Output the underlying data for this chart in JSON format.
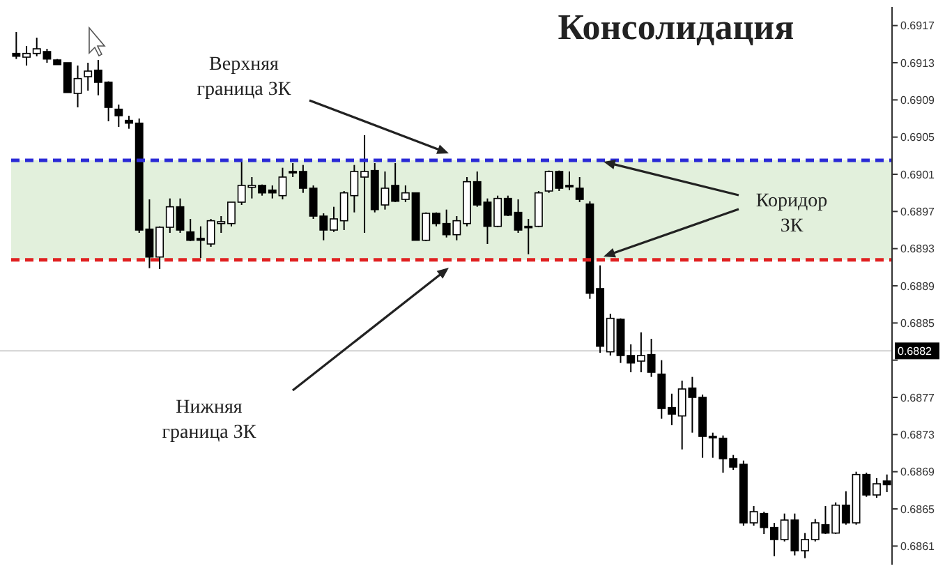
{
  "chart_data": {
    "type": "candlestick",
    "title": "Консолидация",
    "categories": [
      null,
      null,
      null,
      null,
      null,
      null,
      null,
      null,
      null,
      null,
      null,
      null,
      null,
      null,
      null,
      null,
      null,
      null,
      null,
      null,
      null,
      null,
      null,
      null,
      null,
      null,
      null,
      null,
      null,
      null,
      null,
      null,
      null,
      null,
      null,
      null,
      null,
      null,
      null,
      null,
      null,
      null,
      null,
      null,
      null,
      null,
      null,
      null,
      null,
      null,
      null,
      null,
      null,
      null,
      null,
      null,
      null,
      null,
      null,
      null,
      null,
      null,
      null,
      null,
      null,
      null,
      null,
      null,
      null,
      null,
      null,
      null,
      null,
      null,
      null,
      null,
      null,
      null,
      null,
      null,
      null,
      null,
      null,
      null,
      null,
      null
    ],
    "ohlc": [
      [
        0.6914,
        0.69163,
        0.69134,
        0.69137
      ],
      [
        0.69136,
        0.69148,
        0.69127,
        0.6914
      ],
      [
        0.6914,
        0.69157,
        0.69137,
        0.69145
      ],
      [
        0.69142,
        0.69145,
        0.6913,
        0.69134
      ],
      [
        0.69133,
        0.69134,
        0.69128,
        0.69128
      ],
      [
        0.6913,
        0.6913,
        0.69098,
        0.69098
      ],
      [
        0.69097,
        0.69127,
        0.69082,
        0.69113
      ],
      [
        0.69115,
        0.6913,
        0.691,
        0.69121
      ],
      [
        0.69122,
        0.69133,
        0.69095,
        0.69109
      ],
      [
        0.69109,
        0.6911,
        0.69067,
        0.69082
      ],
      [
        0.6908,
        0.69085,
        0.69061,
        0.69073
      ],
      [
        0.69068,
        0.69073,
        0.69059,
        0.69065
      ],
      [
        0.69065,
        0.6907,
        0.68947,
        0.6895
      ],
      [
        0.68951,
        0.68983,
        0.68909,
        0.68921
      ],
      [
        0.68921,
        0.68954,
        0.68908,
        0.68953
      ],
      [
        0.68953,
        0.68984,
        0.68947,
        0.68975
      ],
      [
        0.68975,
        0.68984,
        0.68947,
        0.6895
      ],
      [
        0.68948,
        0.68962,
        0.68938,
        0.68939
      ],
      [
        0.68941,
        0.68954,
        0.6892,
        0.68939
      ],
      [
        0.68935,
        0.68962,
        0.68932,
        0.6896
      ],
      [
        0.68957,
        0.68965,
        0.68947,
        0.68959
      ],
      [
        0.68957,
        0.6898,
        0.68954,
        0.6898
      ],
      [
        0.6898,
        0.69025,
        0.68977,
        0.68998
      ],
      [
        0.68996,
        0.69007,
        0.68984,
        0.68998
      ],
      [
        0.68998,
        0.68999,
        0.68987,
        0.6899
      ],
      [
        0.68993,
        0.68998,
        0.68984,
        0.6899
      ],
      [
        0.68987,
        0.69017,
        0.68983,
        0.69007
      ],
      [
        0.69013,
        0.69022,
        0.69007,
        0.69012
      ],
      [
        0.69013,
        0.6902,
        0.6899,
        0.68995
      ],
      [
        0.68995,
        0.68998,
        0.68962,
        0.68965
      ],
      [
        0.68965,
        0.68968,
        0.68939,
        0.6895
      ],
      [
        0.6895,
        0.68975,
        0.68948,
        0.68962
      ],
      [
        0.6896,
        0.68992,
        0.6895,
        0.6899
      ],
      [
        0.68987,
        0.6902,
        0.68969,
        0.69013
      ],
      [
        0.69007,
        0.69052,
        0.68947,
        0.69013
      ],
      [
        0.69014,
        0.69022,
        0.68969,
        0.68972
      ],
      [
        0.68977,
        0.69013,
        0.68972,
        0.68995
      ],
      [
        0.68998,
        0.69022,
        0.6898,
        0.68981
      ],
      [
        0.68983,
        0.68998,
        0.6898,
        0.6899
      ],
      [
        0.6899,
        0.6899,
        0.68939,
        0.68939
      ],
      [
        0.68939,
        0.68969,
        0.68938,
        0.68968
      ],
      [
        0.68968,
        0.68969,
        0.68954,
        0.68957
      ],
      [
        0.68957,
        0.68972,
        0.68942,
        0.68945
      ],
      [
        0.68945,
        0.68965,
        0.68939,
        0.6896
      ],
      [
        0.68957,
        0.69007,
        0.68954,
        0.69002
      ],
      [
        0.69002,
        0.69013,
        0.68975,
        0.68977
      ],
      [
        0.6898,
        0.68984,
        0.68935,
        0.68954
      ],
      [
        0.68954,
        0.68987,
        0.68953,
        0.68984
      ],
      [
        0.68984,
        0.68987,
        0.68965,
        0.68966
      ],
      [
        0.68969,
        0.68983,
        0.68947,
        0.6895
      ],
      [
        0.68954,
        0.68962,
        0.68924,
        0.68953
      ],
      [
        0.68954,
        0.68992,
        0.68953,
        0.6899
      ],
      [
        0.68992,
        0.69014,
        0.6899,
        0.69013
      ],
      [
        0.69013,
        0.69014,
        0.68992,
        0.68995
      ],
      [
        0.68998,
        0.69013,
        0.68993,
        0.68997
      ],
      [
        0.68995,
        0.69007,
        0.6898,
        0.68983
      ],
      [
        0.68978,
        0.68981,
        0.68876,
        0.68882
      ],
      [
        0.68887,
        0.68912,
        0.68818,
        0.68825
      ],
      [
        0.68819,
        0.6886,
        0.68815,
        0.68855
      ],
      [
        0.68854,
        0.68855,
        0.68807,
        0.68815
      ],
      [
        0.68815,
        0.68827,
        0.68797,
        0.68807
      ],
      [
        0.68809,
        0.6884,
        0.68797,
        0.68815
      ],
      [
        0.68816,
        0.68833,
        0.68792,
        0.68797
      ],
      [
        0.68795,
        0.6881,
        0.68747,
        0.68758
      ],
      [
        0.68759,
        0.68774,
        0.6874,
        0.68752
      ],
      [
        0.6875,
        0.68788,
        0.68714,
        0.68779
      ],
      [
        0.6878,
        0.68792,
        0.68732,
        0.6877
      ],
      [
        0.6877,
        0.68773,
        0.68705,
        0.68728
      ],
      [
        0.68728,
        0.68732,
        0.68705,
        0.68727
      ],
      [
        0.68726,
        0.68729,
        0.68689,
        0.68704
      ],
      [
        0.68704,
        0.68708,
        0.68692,
        0.68695
      ],
      [
        0.68698,
        0.68702,
        0.68632,
        0.68635
      ],
      [
        0.68635,
        0.68653,
        0.68632,
        0.68647
      ],
      [
        0.68645,
        0.68647,
        0.68623,
        0.6863
      ],
      [
        0.6863,
        0.68635,
        0.68599,
        0.68617
      ],
      [
        0.68617,
        0.68645,
        0.68615,
        0.68638
      ],
      [
        0.68638,
        0.68645,
        0.686,
        0.68605
      ],
      [
        0.68605,
        0.68624,
        0.68597,
        0.68617
      ],
      [
        0.68617,
        0.68639,
        0.68615,
        0.68635
      ],
      [
        0.68633,
        0.68653,
        0.68623,
        0.68624
      ],
      [
        0.68624,
        0.68657,
        0.68623,
        0.68654
      ],
      [
        0.68654,
        0.68669,
        0.68633,
        0.68635
      ],
      [
        0.68635,
        0.6869,
        0.68633,
        0.68687
      ],
      [
        0.68687,
        0.68689,
        0.68663,
        0.68665
      ],
      [
        0.68665,
        0.68683,
        0.68662,
        0.68677
      ],
      [
        0.6868,
        0.68687,
        0.68668,
        0.68676
      ]
    ],
    "ylim": [
      0.6859,
      0.6919
    ],
    "yticks": [
      0.6917,
      0.6913,
      0.6909,
      0.6905,
      0.6901,
      0.6897,
      0.6893,
      0.6889,
      0.6885,
      {
        "value": 0.6881,
        "label": null
      },
      0.6877,
      0.6873,
      0.6869,
      0.6865,
      0.6861
    ],
    "tick_labels": "y",
    "ref_lines": [
      {
        "axis": "y",
        "value": 0.69025,
        "color": "#2a2ad6",
        "line_style": "dashed"
      },
      {
        "axis": "y",
        "value": 0.68918,
        "color": "#e02020",
        "line_style": "dashed"
      },
      {
        "axis": "y",
        "value": 0.6882,
        "label": "0.6882",
        "color": "#d0d0d0",
        "line_style": "solid"
      }
    ],
    "bands": [
      {
        "axis": "y",
        "from": 0.68918,
        "to": 0.69025,
        "color": "#e2f0dc"
      }
    ],
    "annotations": [
      "Верхняя граница ЗК",
      "Коридор ЗК",
      "Нижняя граница ЗК"
    ]
  }
}
